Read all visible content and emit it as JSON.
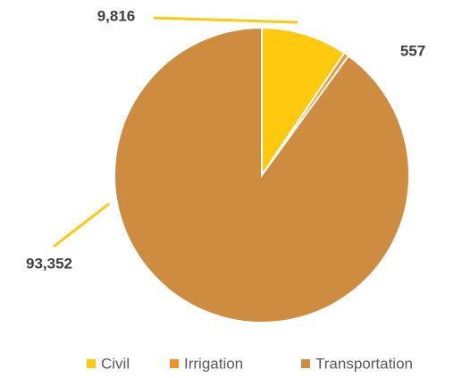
{
  "chart_data": {
    "type": "pie",
    "categories": [
      "Civil",
      "Irrigation",
      "Transportation"
    ],
    "values": [
      9816,
      557,
      93352
    ],
    "value_labels": [
      "9,816",
      "557",
      "93,352"
    ],
    "colors": [
      "#fec90f",
      "#f0922a",
      "#cd8c3f"
    ],
    "legend": "bottom"
  }
}
